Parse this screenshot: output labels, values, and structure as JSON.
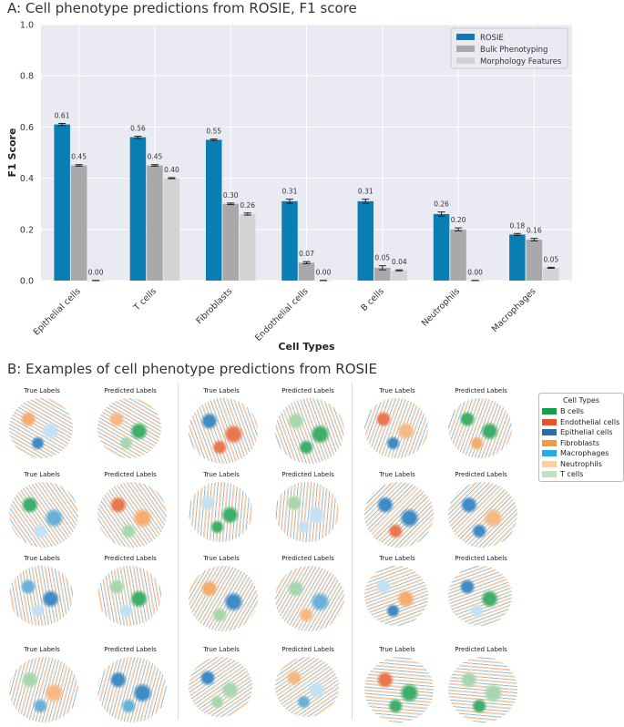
{
  "panel_a_title": "A: Cell phenotype predictions from ROSIE, F1 score",
  "panel_b_title": "B: Examples of cell phenotype predictions from ROSIE",
  "chart_data": {
    "type": "bar",
    "title": "A: Cell phenotype predictions from ROSIE, F1 score",
    "xlabel": "Cell Types",
    "ylabel": "F1 Score",
    "ylim": [
      0,
      1.0
    ],
    "yticks": [
      "0.0",
      "0.2",
      "0.4",
      "0.6",
      "0.8",
      "1.0"
    ],
    "grid": true,
    "legend_position": "top-right",
    "categories": [
      "Epithelial cells",
      "T cells",
      "Fibroblasts",
      "Endothelial cells",
      "B cells",
      "Neutrophils",
      "Macrophages"
    ],
    "series": [
      {
        "name": "ROSIE",
        "color": "#0a7db3",
        "values": [
          0.61,
          0.56,
          0.55,
          0.31,
          0.31,
          0.26,
          0.18
        ],
        "errors": [
          0.004,
          0.004,
          0.003,
          0.008,
          0.008,
          0.008,
          0.004
        ]
      },
      {
        "name": "Bulk Phenotyping",
        "color": "#a9a9a9",
        "values": [
          0.45,
          0.45,
          0.3,
          0.07,
          0.05,
          0.2,
          0.16
        ],
        "errors": [
          0.003,
          0.003,
          0.003,
          0.004,
          0.008,
          0.006,
          0.005
        ]
      },
      {
        "name": "Morphology Features",
        "color": "#d3d3d3",
        "values": [
          0.0,
          0.4,
          0.26,
          0.0,
          0.04,
          0.0,
          0.05
        ],
        "errors": [
          0.001,
          0.002,
          0.004,
          0.001,
          0.002,
          0.001,
          0.002
        ]
      }
    ],
    "data_labels": [
      [
        "0.61",
        "0.56",
        "0.55",
        "0.31",
        "0.31",
        "0.26",
        "0.18"
      ],
      [
        "0.45",
        "0.45",
        "0.30",
        "0.07",
        "0.05",
        "0.20",
        "0.16"
      ],
      [
        "0.00",
        "0.40",
        "0.26",
        "0.00",
        "0.04",
        "0.00",
        "0.05"
      ]
    ]
  },
  "examples": {
    "true_label": "True Labels",
    "predicted_label": "Predicted Labels"
  },
  "legend_b": {
    "title": "Cell Types",
    "items": [
      {
        "label": "B cells",
        "color": "#1a9e49"
      },
      {
        "label": "Endothelial cells",
        "color": "#e8532a"
      },
      {
        "label": "Epithelial cells",
        "color": "#1f6fb2"
      },
      {
        "label": "Fibroblasts",
        "color": "#f39a3c"
      },
      {
        "label": "Macrophages",
        "color": "#29abe2"
      },
      {
        "label": "Neutrophils",
        "color": "#fbd1a6"
      },
      {
        "label": "T cells",
        "color": "#bfe3c0"
      }
    ]
  }
}
